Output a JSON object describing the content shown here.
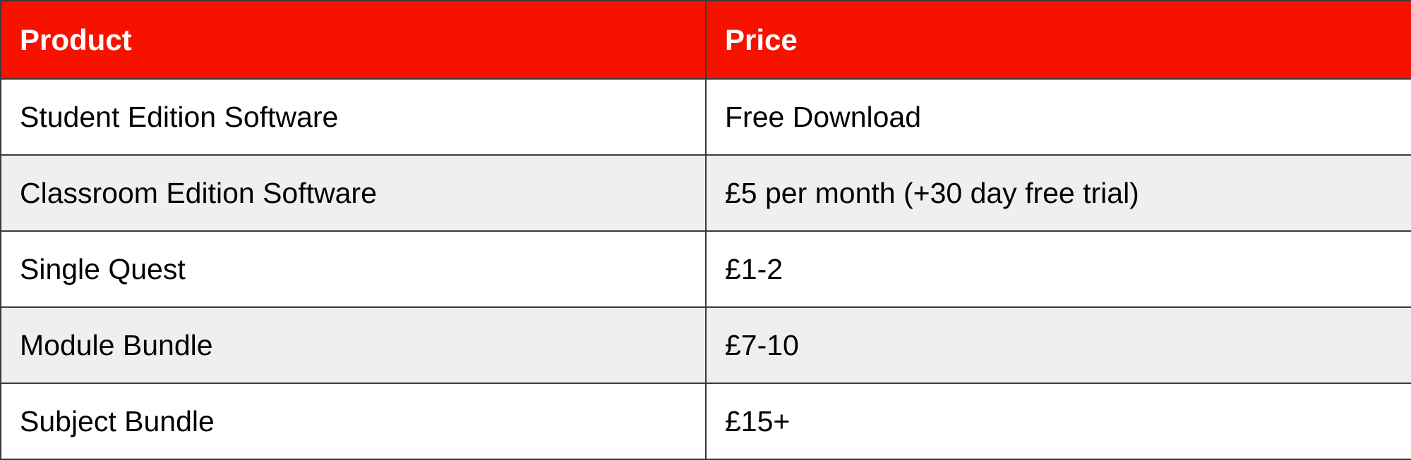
{
  "table": {
    "header_bg": "#f71200",
    "stripe_bg": "#efefef",
    "columns": [
      "Product",
      "Price"
    ],
    "rows": [
      {
        "product": "Student Edition Software",
        "price": "Free Download"
      },
      {
        "product": "Classroom Edition Software",
        "price": "£5 per month (+30 day free trial)"
      },
      {
        "product": "Single Quest",
        "price": "£1-2"
      },
      {
        "product": "Module Bundle",
        "price": "£7-10"
      },
      {
        "product": "Subject Bundle",
        "price": "£15+"
      }
    ]
  }
}
